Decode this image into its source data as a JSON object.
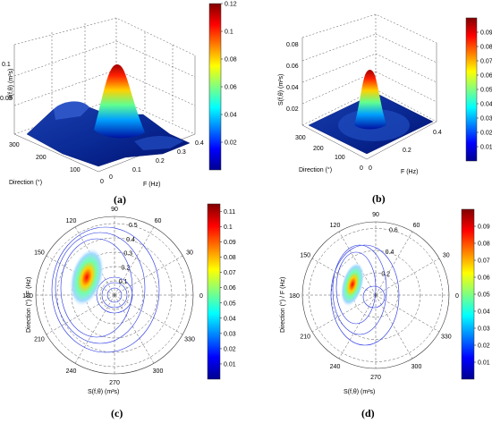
{
  "colors": {
    "jet": [
      "#00008f",
      "#0000ff",
      "#0080ff",
      "#00ffff",
      "#80ff80",
      "#ffff00",
      "#ff8000",
      "#ff0000",
      "#800000"
    ]
  },
  "panels": [
    {
      "caption": "(a)",
      "chart_data": {
        "type": "surface3d",
        "zlabel": "S(f,θ) (m²s)",
        "xlabel": "F (Hz)",
        "ylabel": "Direction (°)",
        "x_ticks": [
          "0",
          "0.1",
          "0.2",
          "0.3",
          "0.4"
        ],
        "y_ticks": [
          "0",
          "100",
          "200",
          "300"
        ],
        "z_ticks": [
          "0.05",
          "0.1"
        ],
        "peak": {
          "f": 0.12,
          "direction": 160,
          "value": 0.12
        },
        "colorbar": {
          "ticks": [
            "0.02",
            "0.04",
            "0.06",
            "0.08",
            "0.1",
            "0.12"
          ],
          "range": [
            0,
            0.12
          ]
        }
      }
    },
    {
      "caption": "(b)",
      "chart_data": {
        "type": "surface3d",
        "zlabel": "S(f,θ) (m²s)",
        "xlabel": "F (Hz)",
        "ylabel": "Direction (°)",
        "x_ticks": [
          "0",
          "0.2",
          "0.4"
        ],
        "y_ticks": [
          "0",
          "100",
          "200",
          "300"
        ],
        "z_ticks": [
          "0.02",
          "0.04",
          "0.06",
          "0.08"
        ],
        "peak": {
          "f": 0.12,
          "direction": 170,
          "value": 0.095
        },
        "colorbar": {
          "ticks": [
            "0.01",
            "0.02",
            "0.03",
            "0.04",
            "0.05",
            "0.06",
            "0.07",
            "0.08",
            "0.09"
          ],
          "range": [
            0,
            0.1
          ]
        }
      }
    },
    {
      "caption": "(c)",
      "chart_data": {
        "type": "polar_contour",
        "xlabel": "S(f,θ) (m²s)",
        "ylabel": "Direction (°) / F (Hz)",
        "angle_ticks": [
          "90",
          "60",
          "30",
          "0",
          "330",
          "300",
          "270",
          "240",
          "210",
          "180",
          "150",
          "120"
        ],
        "radial_ticks": [
          "0.1",
          "0.2",
          "0.3",
          "0.4",
          "0.5"
        ],
        "peak": {
          "f": 0.25,
          "direction": 165,
          "value": 0.11
        },
        "colorbar": {
          "ticks": [
            "0.01",
            "0.02",
            "0.03",
            "0.04",
            "0.05",
            "0.06",
            "0.07",
            "0.08",
            "0.09",
            "0.1",
            "0.11"
          ],
          "range": [
            0,
            0.115
          ]
        }
      }
    },
    {
      "caption": "(d)",
      "chart_data": {
        "type": "polar_contour",
        "xlabel": "S(f,θ) (m²s)",
        "ylabel": "Direction (°) / F (Hz)",
        "angle_ticks": [
          "90",
          "60",
          "30",
          "0",
          "330",
          "300",
          "270",
          "240",
          "210",
          "180",
          "150",
          "120"
        ],
        "radial_ticks": [
          "0.2",
          "0.4",
          "0.6"
        ],
        "peak": {
          "f": 0.3,
          "direction": 170,
          "value": 0.095
        },
        "colorbar": {
          "ticks": [
            "0.01",
            "0.02",
            "0.03",
            "0.04",
            "0.05",
            "0.06",
            "0.07",
            "0.08",
            "0.09"
          ],
          "range": [
            0,
            0.1
          ]
        }
      }
    }
  ]
}
